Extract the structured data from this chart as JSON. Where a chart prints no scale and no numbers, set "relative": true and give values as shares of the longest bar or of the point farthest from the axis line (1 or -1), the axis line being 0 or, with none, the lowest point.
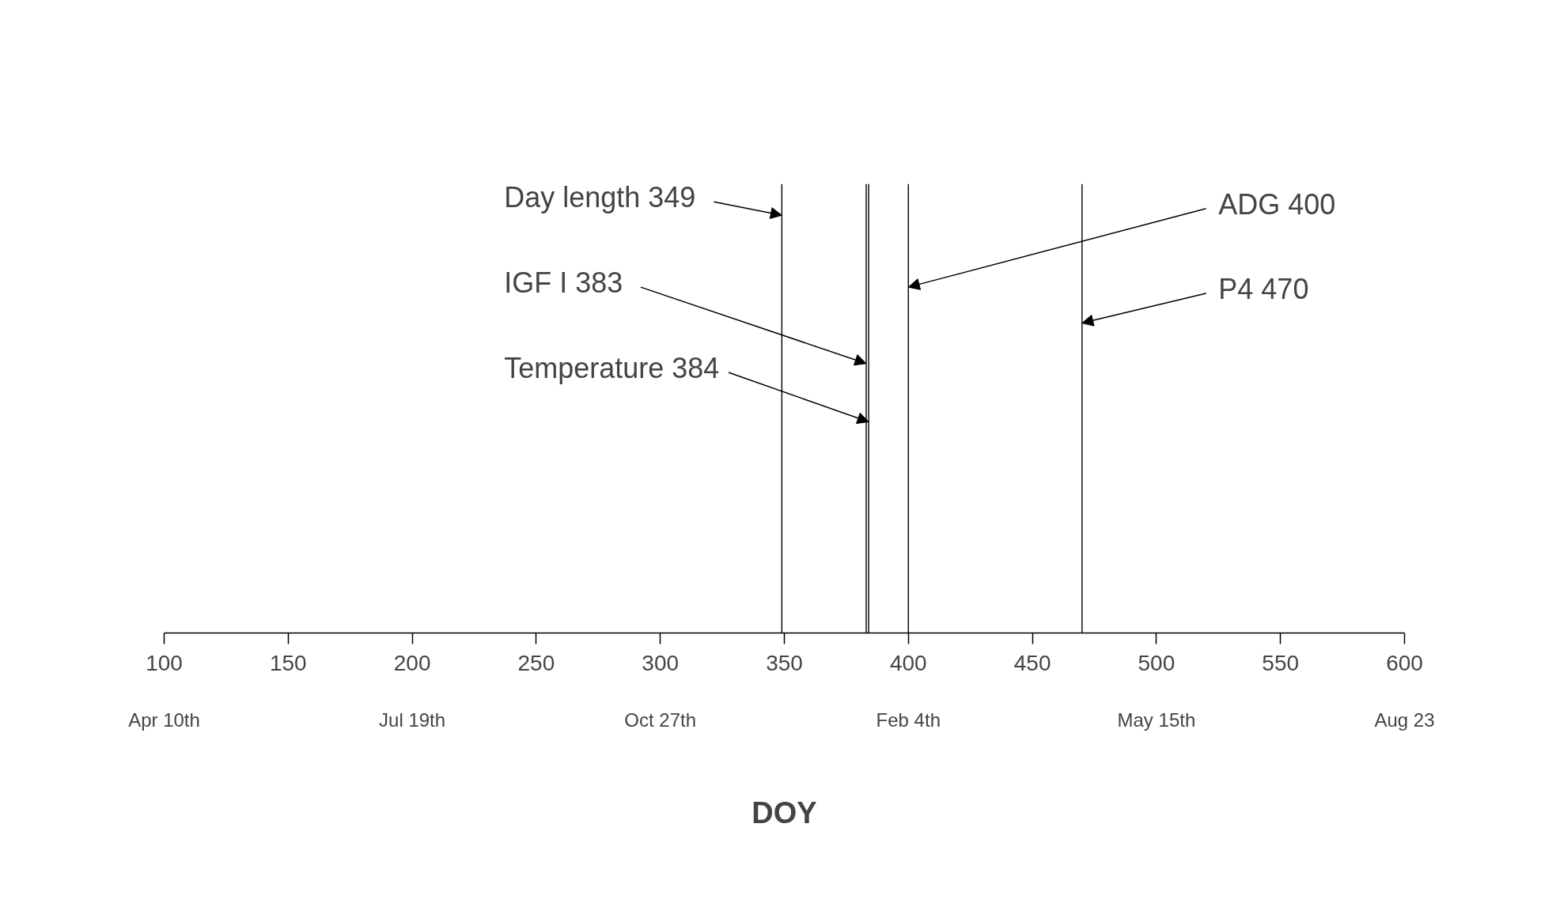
{
  "chart_data": {
    "type": "bar",
    "relative": true,
    "xlabel": "DOY",
    "xlim": [
      100,
      600
    ],
    "xticks": [
      100,
      150,
      200,
      250,
      300,
      350,
      400,
      450,
      500,
      550,
      600
    ],
    "x": [
      349,
      383,
      384,
      400,
      470
    ],
    "values": [
      1,
      1,
      1,
      1,
      1
    ],
    "color": "#000000",
    "annotations": [
      {
        "text": "Day length 349",
        "x": 349,
        "y": 0.93
      },
      {
        "text": "IGF I 383",
        "x": 383,
        "y": 0.6
      },
      {
        "text": "Temperature 384",
        "x": 384,
        "y": 0.47
      },
      {
        "text": "ADG 400",
        "x": 400,
        "y": 0.77
      },
      {
        "text": "P4 470",
        "x": 470,
        "y": 0.69
      },
      "Apr 10th",
      "Jul 19th",
      "Oct 27th",
      "Feb 4th",
      "May 15th",
      "Aug 23"
    ]
  }
}
